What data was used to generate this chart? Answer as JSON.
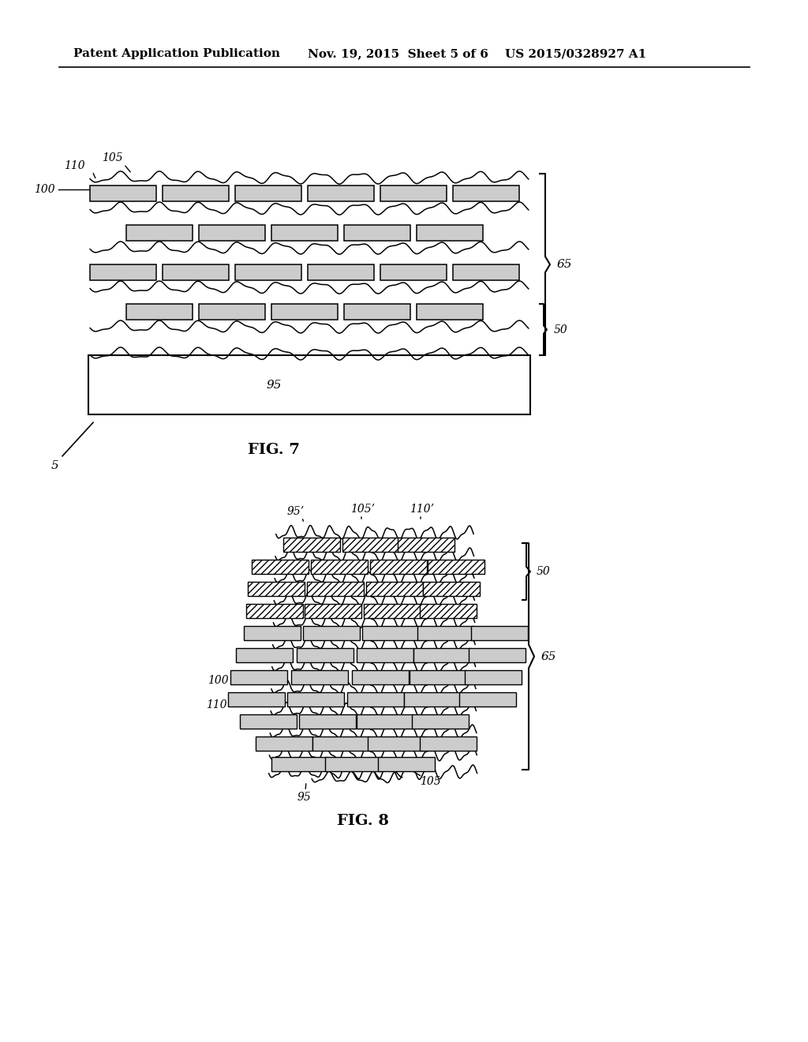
{
  "bg_color": "#ffffff",
  "header_left": "Patent Application Publication",
  "header_mid": "Nov. 19, 2015  Sheet 5 of 6",
  "header_right": "US 2015/0328927 A1",
  "fig7_label": "FIG. 7",
  "fig8_label": "FIG. 8",
  "line_color": "#000000",
  "rect_fill": "#cccccc",
  "hatch_pattern": "////"
}
